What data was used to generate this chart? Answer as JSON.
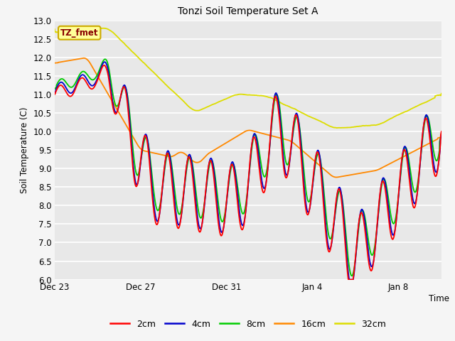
{
  "title": "Tonzi Soil Temperature Set A",
  "ylabel": "Soil Temperature (C)",
  "xlabel": "Time",
  "ylim": [
    6.0,
    13.0
  ],
  "yticks": [
    6.0,
    6.5,
    7.0,
    7.5,
    8.0,
    8.5,
    9.0,
    9.5,
    10.0,
    10.5,
    11.0,
    11.5,
    12.0,
    12.5,
    13.0
  ],
  "colors": {
    "2cm": "#ff0000",
    "4cm": "#0000cc",
    "8cm": "#00cc00",
    "16cm": "#ff8800",
    "32cm": "#dddd00"
  },
  "legend_label": "TZ_fmet",
  "legend_box_facecolor": "#ffff99",
  "legend_box_edgecolor": "#ccaa00",
  "fig_facecolor": "#f5f5f5",
  "plot_bg_color": "#e8e8e8",
  "grid_color": "#ffffff",
  "xtick_labels": [
    "Dec 23",
    "Dec 27",
    "Dec 31",
    "Jan 4",
    "Jan 8"
  ],
  "tick_days": [
    0,
    4,
    8,
    12,
    16
  ]
}
